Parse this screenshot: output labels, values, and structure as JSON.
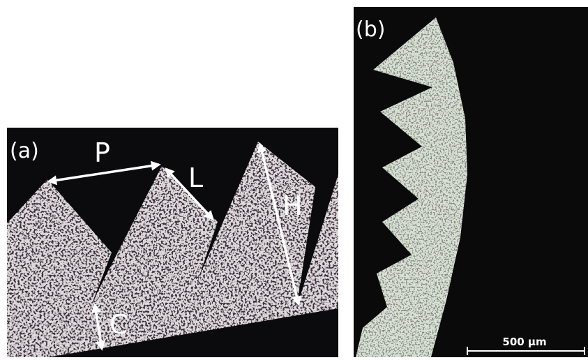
{
  "panel_a": {
    "label": "(a)",
    "annotations": [
      "P",
      "L",
      "H",
      "C"
    ]
  },
  "panel_b": {
    "label": "(b)",
    "scale_bar": "500 µm"
  }
}
